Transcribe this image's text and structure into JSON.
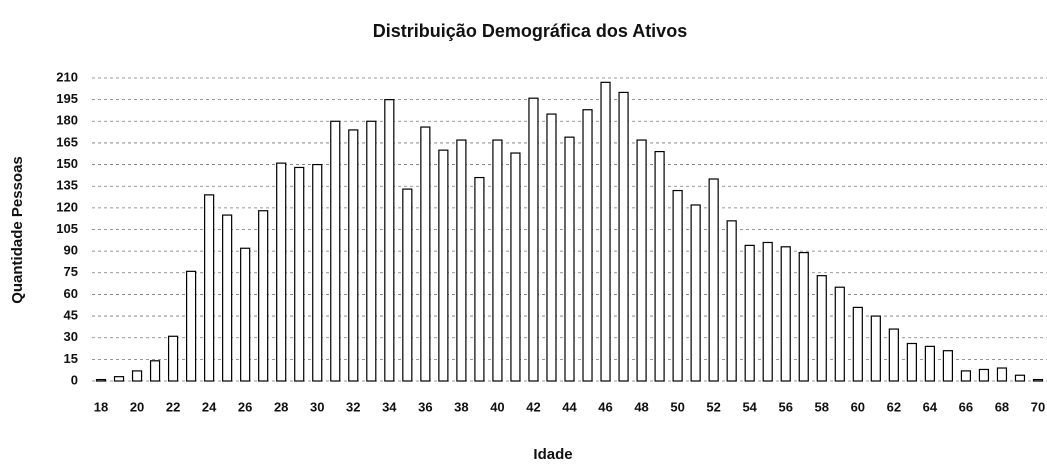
{
  "chart_data": {
    "type": "bar",
    "title": "Distribuição Demográfica dos Ativos",
    "xlabel": "Idade",
    "ylabel": "Quantidade  Pessoas",
    "categories": [
      "18",
      null,
      "20",
      null,
      "22",
      null,
      "24",
      null,
      "26",
      null,
      "28",
      null,
      "30",
      null,
      "32",
      null,
      "34",
      null,
      "36",
      null,
      "38",
      null,
      "40",
      null,
      "42",
      null,
      "44",
      null,
      "46",
      null,
      "48",
      null,
      "50",
      null,
      "52",
      null,
      "54",
      null,
      "56",
      null,
      "58",
      null,
      "60",
      null,
      "62",
      null,
      "64",
      null,
      "66",
      null,
      "68",
      null,
      "70"
    ],
    "values": [
      1,
      3,
      7,
      14,
      31,
      76,
      129,
      115,
      92,
      118,
      151,
      148,
      150,
      180,
      174,
      180,
      195,
      133,
      176,
      160,
      167,
      141,
      167,
      158,
      196,
      185,
      169,
      188,
      207,
      200,
      167,
      159,
      132,
      122,
      140,
      111,
      94,
      96,
      93,
      89,
      73,
      65,
      51,
      45,
      36,
      26,
      24,
      21,
      7,
      8,
      9,
      4,
      1
    ],
    "color": "#ffffff",
    "ylim": [
      0,
      210
    ],
    "yticks": [
      0,
      15,
      30,
      45,
      60,
      75,
      90,
      105,
      120,
      135,
      150,
      165,
      180,
      195,
      210
    ],
    "grid": true
  }
}
